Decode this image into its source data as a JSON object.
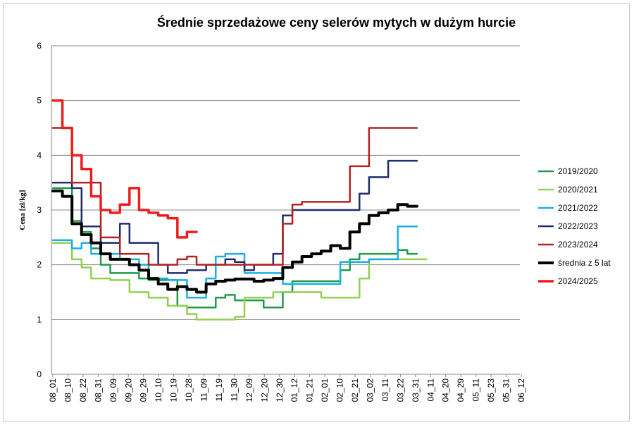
{
  "chart_data": {
    "type": "line",
    "title": "Średnie sprzedażowe ceny selerów mytych w dużym hurcie",
    "ylabel": "Cena [zł/kg]",
    "xlabel": "",
    "ylim": [
      0,
      6
    ],
    "yticks": [
      0,
      1,
      2,
      3,
      4,
      5,
      6
    ],
    "grid": "horizontal",
    "legend_position": "right",
    "week_count": 45,
    "x_tick_labels": [
      "08_01",
      "08_10",
      "08_22",
      "08_31",
      "09_09",
      "09_20",
      "09_29",
      "10_10",
      "10_19",
      "10_28",
      "11_09",
      "11_19",
      "11_30",
      "12_09",
      "12_20",
      "12_30",
      "01_12",
      "01_21",
      "02_01",
      "02_10",
      "02_21",
      "03_02",
      "03_11",
      "03_22",
      "03_31",
      "04_11",
      "04_20",
      "04_29",
      "05_11",
      "05_23",
      "05_31",
      "06_12"
    ],
    "series": [
      {
        "name": "2019/2020",
        "color": "#1e9b47",
        "width": 2.5,
        "values": [
          3.4,
          3.4,
          2.8,
          2.6,
          2.3,
          2.0,
          1.85,
          1.85,
          1.85,
          1.75,
          1.72,
          1.72,
          1.72,
          1.25,
          1.22,
          1.22,
          1.22,
          1.4,
          1.45,
          1.35,
          1.35,
          1.35,
          1.22,
          1.22,
          1.5,
          1.7,
          1.7,
          1.7,
          1.7,
          1.7,
          1.9,
          2.1,
          2.2,
          2.2,
          2.2,
          2.2,
          2.27,
          2.2
        ]
      },
      {
        "name": "2020/2021",
        "color": "#92d050",
        "width": 2.5,
        "values": [
          2.4,
          2.4,
          2.1,
          1.95,
          1.75,
          1.75,
          1.72,
          1.72,
          1.5,
          1.5,
          1.4,
          1.4,
          1.25,
          1.25,
          1.1,
          1.0,
          1.0,
          1.0,
          1.0,
          1.05,
          1.4,
          1.4,
          1.4,
          1.5,
          1.5,
          1.5,
          1.5,
          1.5,
          1.4,
          1.4,
          1.4,
          1.4,
          1.75,
          2.1,
          2.1,
          2.1,
          2.1,
          2.1,
          2.1
        ]
      },
      {
        "name": "2021/2022",
        "color": "#17b0e6",
        "width": 2.5,
        "values": [
          2.45,
          2.45,
          2.3,
          2.4,
          2.2,
          2.2,
          2.2,
          2.1,
          2.1,
          2.0,
          1.75,
          1.75,
          1.72,
          1.72,
          1.4,
          1.4,
          1.75,
          2.15,
          2.2,
          2.2,
          1.85,
          1.85,
          1.85,
          1.85,
          1.65,
          1.65,
          1.65,
          1.65,
          1.65,
          1.65,
          2.05,
          2.05,
          2.05,
          2.1,
          2.1,
          2.1,
          2.7,
          2.7
        ]
      },
      {
        "name": "2022/2023",
        "color": "#1f2d6b",
        "width": 2.5,
        "values": [
          3.5,
          3.5,
          3.4,
          2.7,
          2.7,
          2.4,
          2.4,
          2.75,
          2.4,
          2.4,
          2.4,
          2.0,
          1.85,
          1.85,
          1.9,
          1.9,
          2.0,
          2.0,
          2.1,
          2.05,
          1.9,
          2.0,
          2.0,
          2.2,
          2.9,
          3.0,
          3.0,
          3.0,
          3.0,
          3.0,
          3.0,
          3.0,
          3.3,
          3.6,
          3.6,
          3.9,
          3.9,
          3.9
        ]
      },
      {
        "name": "2023/2024",
        "color": "#b22222",
        "width": 2.5,
        "values": [
          4.5,
          4.5,
          3.5,
          3.5,
          3.5,
          2.5,
          2.5,
          2.2,
          2.2,
          2.2,
          2.0,
          2.0,
          2.0,
          2.1,
          2.15,
          2.0,
          2.0,
          2.0,
          2.0,
          2.0,
          2.0,
          2.0,
          2.0,
          2.0,
          2.75,
          3.1,
          3.15,
          3.15,
          3.15,
          3.15,
          3.15,
          3.8,
          3.8,
          4.5,
          4.5,
          4.5,
          4.5,
          4.5
        ]
      },
      {
        "name": "średnia z 5 lat",
        "color": "#000000",
        "width": 4,
        "values": [
          3.35,
          3.25,
          2.75,
          2.55,
          2.4,
          2.2,
          2.1,
          2.1,
          2.0,
          1.9,
          1.75,
          1.65,
          1.55,
          1.6,
          1.55,
          1.5,
          1.65,
          1.7,
          1.72,
          1.74,
          1.74,
          1.7,
          1.72,
          1.75,
          1.95,
          2.05,
          2.15,
          2.2,
          2.25,
          2.35,
          2.3,
          2.6,
          2.75,
          2.9,
          2.95,
          3.0,
          3.1,
          3.07
        ]
      },
      {
        "name": "2024/2025",
        "color": "#ee1c1c",
        "width": 3.5,
        "values": [
          5.0,
          4.5,
          4.0,
          3.75,
          3.25,
          3.0,
          2.95,
          3.1,
          3.4,
          3.0,
          2.95,
          2.9,
          2.85,
          2.5,
          2.6
        ]
      }
    ]
  }
}
